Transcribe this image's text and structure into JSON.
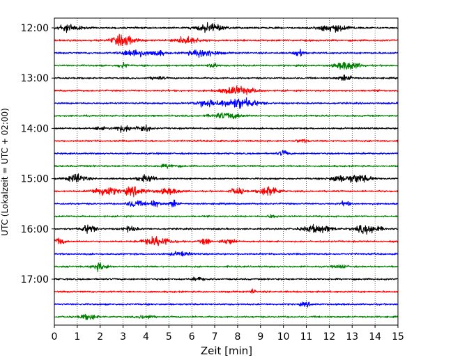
{
  "chart_data": {
    "type": "line",
    "title": "",
    "xlabel": "Zeit  [min]",
    "ylabel": "UTC (Lokalzeit = UTC + 02:00)",
    "xlim": [
      0,
      15
    ],
    "x_ticks": [
      "0",
      "1",
      "2",
      "3",
      "4",
      "5",
      "6",
      "7",
      "8",
      "9",
      "10",
      "11",
      "12",
      "13",
      "14",
      "15"
    ],
    "y_ticks": [
      "12:00",
      "13:00",
      "14:00",
      "15:00",
      "16:00",
      "17:00"
    ],
    "grid_x": true,
    "grid_style": "dotted",
    "legend": false,
    "row_interval_min": 15,
    "row_colors": [
      "#000000",
      "#ff0000",
      "#0000ff",
      "#008000"
    ],
    "rows": [
      {
        "time": "12:00",
        "bursts": [
          [
            0.6,
            0.5,
            1.0
          ],
          [
            6.8,
            0.6,
            1.0
          ],
          [
            12.2,
            0.7,
            0.8
          ]
        ]
      },
      {
        "time": "12:15",
        "bursts": [
          [
            3.0,
            0.5,
            1.3
          ],
          [
            5.8,
            0.5,
            0.9
          ]
        ]
      },
      {
        "time": "12:30",
        "bursts": [
          [
            3.5,
            0.5,
            1.1
          ],
          [
            6.5,
            0.6,
            1.0
          ],
          [
            10.7,
            0.2,
            1.0
          ],
          [
            4.5,
            0.3,
            0.7
          ]
        ]
      },
      {
        "time": "12:45",
        "bursts": [
          [
            12.8,
            0.5,
            1.1
          ],
          [
            3.0,
            0.2,
            0.6
          ],
          [
            6.9,
            0.2,
            0.6
          ]
        ]
      },
      {
        "time": "13:00",
        "bursts": [
          [
            12.7,
            0.3,
            0.7
          ],
          [
            4.5,
            0.3,
            0.4
          ]
        ]
      },
      {
        "time": "13:15",
        "bursts": [
          [
            8.0,
            0.7,
            1.0
          ]
        ]
      },
      {
        "time": "13:30",
        "bursts": [
          [
            8.0,
            0.8,
            1.3
          ],
          [
            6.6,
            0.4,
            0.9
          ]
        ]
      },
      {
        "time": "13:45",
        "bursts": [
          [
            7.5,
            0.6,
            0.8
          ]
        ]
      },
      {
        "time": "14:00",
        "bursts": [
          [
            3.0,
            0.4,
            0.8
          ],
          [
            3.9,
            0.3,
            0.8
          ],
          [
            2.0,
            0.2,
            0.5
          ]
        ]
      },
      {
        "time": "14:15",
        "bursts": [
          [
            10.8,
            0.2,
            0.5
          ]
        ]
      },
      {
        "time": "14:30",
        "bursts": [
          [
            10.0,
            0.2,
            0.7
          ]
        ]
      },
      {
        "time": "14:45",
        "bursts": [
          [
            5.0,
            0.4,
            0.4
          ]
        ]
      },
      {
        "time": "15:00",
        "bursts": [
          [
            1.0,
            0.4,
            1.1
          ],
          [
            13.2,
            0.6,
            1.0
          ],
          [
            4.0,
            0.4,
            0.8
          ],
          [
            12.3,
            0.3,
            0.7
          ]
        ]
      },
      {
        "time": "15:15",
        "bursts": [
          [
            2.2,
            0.5,
            1.2
          ],
          [
            3.5,
            0.5,
            1.0
          ],
          [
            9.4,
            0.4,
            1.3
          ],
          [
            8.0,
            0.3,
            0.8
          ],
          [
            5.0,
            0.5,
            0.7
          ]
        ]
      },
      {
        "time": "15:30",
        "bursts": [
          [
            3.5,
            0.3,
            0.9
          ],
          [
            4.3,
            0.3,
            0.8
          ],
          [
            5.2,
            0.2,
            0.9
          ],
          [
            12.7,
            0.2,
            0.6
          ]
        ]
      },
      {
        "time": "15:45",
        "bursts": [
          [
            9.5,
            0.2,
            0.4
          ]
        ]
      },
      {
        "time": "16:00",
        "bursts": [
          [
            1.5,
            0.3,
            1.0
          ],
          [
            11.5,
            0.6,
            1.0
          ],
          [
            13.7,
            0.5,
            1.2
          ],
          [
            3.3,
            0.3,
            0.6
          ]
        ]
      },
      {
        "time": "16:15",
        "bursts": [
          [
            0.2,
            0.2,
            1.0
          ],
          [
            4.5,
            0.6,
            1.1
          ],
          [
            6.6,
            0.2,
            0.9
          ],
          [
            7.6,
            0.3,
            0.7
          ]
        ]
      },
      {
        "time": "16:30",
        "bursts": [
          [
            5.5,
            0.4,
            0.5
          ]
        ]
      },
      {
        "time": "16:45",
        "bursts": [
          [
            2.0,
            0.3,
            1.0
          ],
          [
            12.5,
            0.3,
            0.4
          ]
        ]
      },
      {
        "time": "17:00",
        "bursts": [
          [
            6.3,
            0.3,
            0.4
          ]
        ]
      },
      {
        "time": "17:15",
        "bursts": [
          [
            8.7,
            0.1,
            0.8
          ]
        ]
      },
      {
        "time": "17:30",
        "bursts": [
          [
            11.0,
            0.3,
            0.4
          ]
        ]
      },
      {
        "time": "17:45",
        "bursts": [
          [
            1.5,
            0.4,
            0.6
          ],
          [
            4.0,
            0.3,
            0.5
          ]
        ]
      }
    ]
  }
}
